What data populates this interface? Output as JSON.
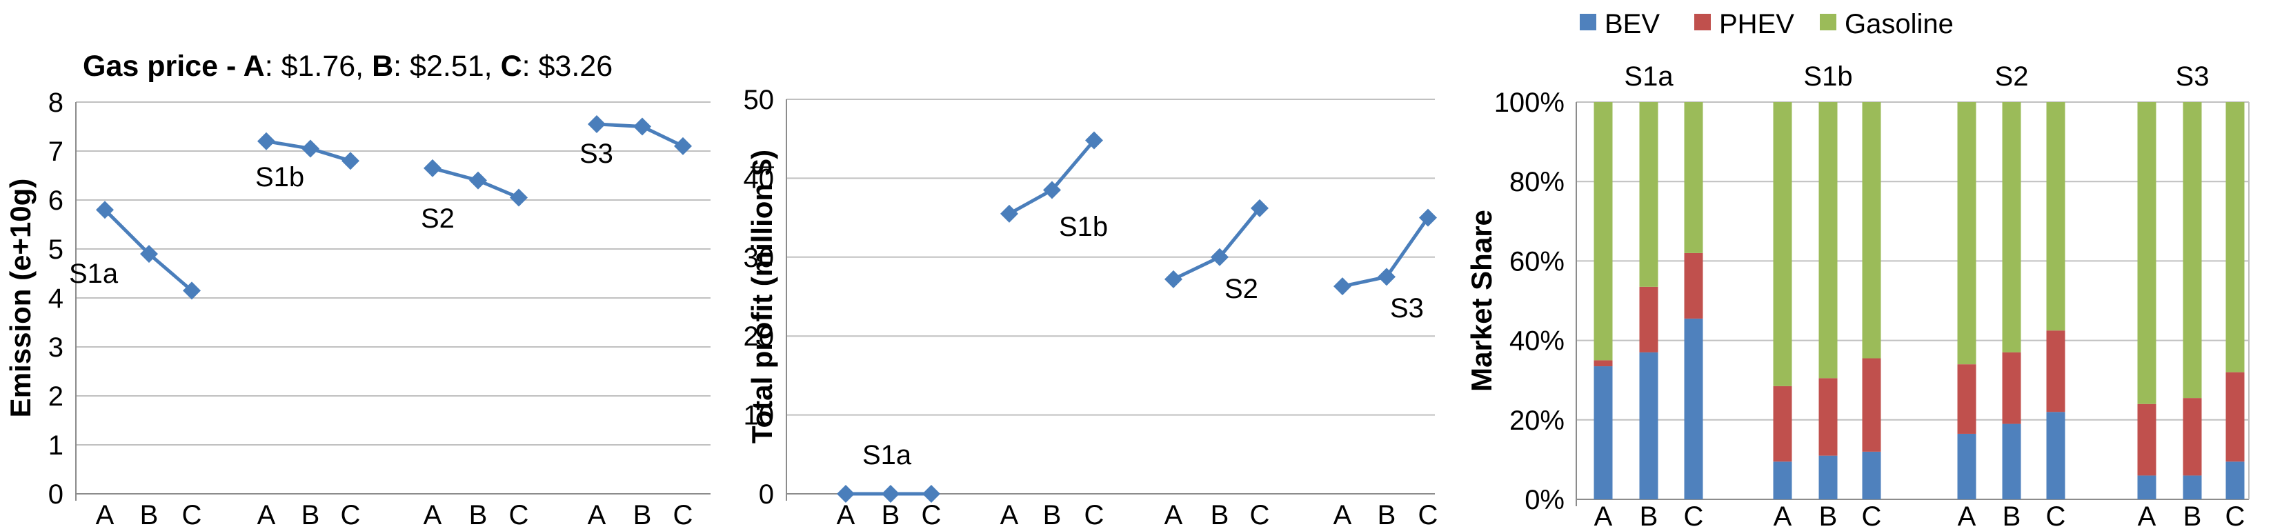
{
  "title": {
    "prefix": "Gas price - ",
    "parts": [
      {
        "key": "A",
        "value": ": $1.76, "
      },
      {
        "key": "B",
        "value": ": $2.51, "
      },
      {
        "key": "C",
        "value": ": $3.26"
      }
    ]
  },
  "colors": {
    "line": "#4a7ebb",
    "grid": "#c0c0c0",
    "axis": "#8c8c8c",
    "bev": "#4f81bd",
    "phev": "#c0504d",
    "gasoline": "#9bbb59"
  },
  "chart_data": [
    {
      "type": "line",
      "ylabel": "Emission (e+10g)",
      "ylim": [
        0,
        8
      ],
      "yticks": [
        "0",
        "1",
        "2",
        "3",
        "4",
        "5",
        "6",
        "7",
        "8"
      ],
      "groups": [
        {
          "name": "S1a",
          "x": [
            "A",
            "B",
            "C"
          ],
          "values": [
            5.8,
            4.9,
            4.15
          ]
        },
        {
          "name": "S1b",
          "x": [
            "A",
            "B",
            "C"
          ],
          "values": [
            7.2,
            7.05,
            6.8
          ]
        },
        {
          "name": "S2",
          "x": [
            "A",
            "B",
            "C"
          ],
          "values": [
            6.65,
            6.4,
            6.05
          ]
        },
        {
          "name": "S3",
          "x": [
            "A",
            "B",
            "C"
          ],
          "values": [
            7.55,
            7.5,
            7.1
          ]
        }
      ]
    },
    {
      "type": "line",
      "ylabel": "Total profit (million $)",
      "ylim": [
        0,
        50
      ],
      "yticks": [
        "0",
        "10",
        "20",
        "30",
        "40",
        "50"
      ],
      "groups": [
        {
          "name": "S1a",
          "x": [
            "A",
            "B",
            "C"
          ],
          "values": [
            0,
            0,
            0
          ]
        },
        {
          "name": "S1b",
          "x": [
            "A",
            "B",
            "C"
          ],
          "values": [
            35.5,
            38.5,
            44.8
          ]
        },
        {
          "name": "S2",
          "x": [
            "A",
            "B",
            "C"
          ],
          "values": [
            27.2,
            30,
            36.2
          ]
        },
        {
          "name": "S3",
          "x": [
            "A",
            "B",
            "C"
          ],
          "values": [
            26.3,
            27.5,
            35
          ]
        }
      ]
    },
    {
      "type": "bar",
      "stacked": true,
      "ylabel": "Market Share",
      "ylim": [
        0,
        100
      ],
      "yticks": [
        "0%",
        "20%",
        "40%",
        "60%",
        "80%",
        "100%"
      ],
      "legend": [
        "BEV",
        "PHEV",
        "Gasoline"
      ],
      "legend_position": "top",
      "groups": [
        {
          "name": "S1a",
          "x": [
            "A",
            "B",
            "C"
          ],
          "bev": [
            33.5,
            37,
            45.5
          ],
          "phev": [
            1.5,
            16.5,
            16.5
          ],
          "gasoline": [
            65,
            46.5,
            38
          ]
        },
        {
          "name": "S1b",
          "x": [
            "A",
            "B",
            "C"
          ],
          "bev": [
            9.5,
            11,
            12
          ],
          "phev": [
            19,
            19.5,
            23.5
          ],
          "gasoline": [
            71.5,
            69.5,
            64.5
          ]
        },
        {
          "name": "S2",
          "x": [
            "A",
            "B",
            "C"
          ],
          "bev": [
            16.5,
            19,
            22
          ],
          "phev": [
            17.5,
            18,
            20.5
          ],
          "gasoline": [
            66,
            63,
            57.5
          ]
        },
        {
          "name": "S3",
          "x": [
            "A",
            "B",
            "C"
          ],
          "bev": [
            6,
            6,
            9.5
          ],
          "phev": [
            18,
            19.5,
            22.5
          ],
          "gasoline": [
            76,
            74.5,
            68
          ]
        }
      ]
    }
  ]
}
